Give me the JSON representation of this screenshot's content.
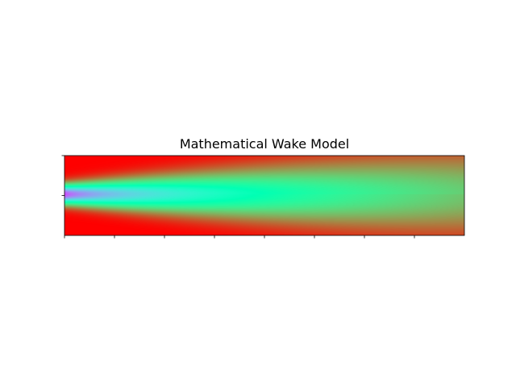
{
  "chart_data": {
    "type": "heatmap",
    "title": "Mathematical Wake Model",
    "xlabel": "",
    "ylabel": "",
    "colormap": "rainbow",
    "x_tick_count": 8,
    "y_tick_count": 2,
    "x_tick_labels": [],
    "y_tick_labels": [],
    "grid": false,
    "legend": "none",
    "colors": {
      "freestream": "#ff1a0d",
      "wake_core_near": "#6a2cf5",
      "wake_mid": "#6cf9b4",
      "wake_far": "#ffa25a",
      "edge": "#ff0000"
    }
  }
}
